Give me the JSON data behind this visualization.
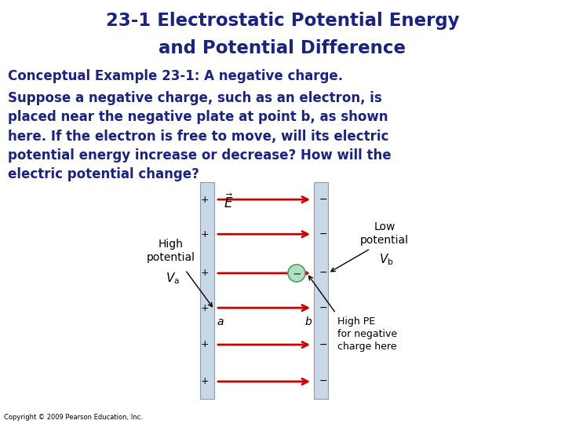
{
  "title_line1": "23-1 Electrostatic Potential Energy",
  "title_line2": "and Potential Difference",
  "title_color": "#1a237e",
  "subtitle": "Conceptual Example 23-1: A negative charge.",
  "body_text": "Suppose a negative charge, such as an electron, is\nplaced near the negative plate at point b, as shown\nhere. If the electron is free to move, will its electric\npotential energy increase or decrease? How will the\nelectric potential change?",
  "body_color": "#1a237e",
  "copyright": "Copyright © 2009 Pearson Education, Inc.",
  "bg_color": "#ffffff",
  "plate_color": "#c8d8e8",
  "arrow_color": "#cc0000",
  "title_fontsize": 16.5,
  "subtitle_fontsize": 12,
  "body_fontsize": 12,
  "copyright_fontsize": 6
}
